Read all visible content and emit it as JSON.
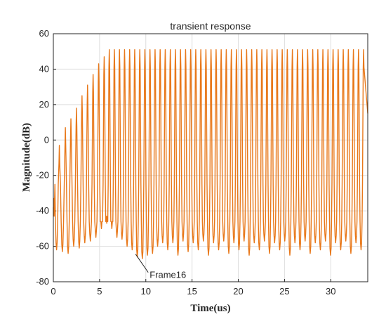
{
  "chart_data": {
    "type": "line",
    "title": "transient response",
    "xlabel": "Time(us)",
    "ylabel": "Magnitude(dB)",
    "xlim": [
      0,
      34
    ],
    "ylim": [
      -80,
      60
    ],
    "x_ticks": [
      0,
      5,
      10,
      15,
      20,
      25,
      30
    ],
    "y_ticks": [
      -80,
      -60,
      -40,
      -20,
      0,
      20,
      40,
      60
    ],
    "x_tick_labels": [
      "0",
      "5",
      "10",
      "15",
      "20",
      "25",
      "30"
    ],
    "y_tick_labels": [
      "-80",
      "-60",
      "-40",
      "-20",
      "0",
      "20",
      "40",
      "60"
    ],
    "grid": true,
    "line_color": "#E8781A",
    "series": [
      {
        "peaks_x": [
          0.05,
          0.65,
          1.3,
          1.9,
          2.5,
          3.1,
          3.7,
          4.3,
          4.9,
          5.5,
          6.05,
          6.6,
          7.15,
          7.7,
          8.25,
          8.8,
          9.35,
          9.9,
          10.45,
          11.0,
          11.55,
          12.1,
          12.65,
          13.2,
          13.75,
          14.3,
          14.85,
          15.4,
          15.95,
          16.5,
          17.05,
          17.6,
          18.15,
          18.7,
          19.25,
          19.8,
          20.35,
          20.9,
          21.45,
          22.0,
          22.55,
          23.1,
          23.65,
          24.2,
          24.75,
          25.3,
          25.85,
          26.4,
          26.95,
          27.5,
          28.05,
          28.6,
          29.15,
          29.7,
          30.25,
          30.8,
          31.35,
          31.9,
          32.45,
          33.0,
          33.55
        ],
        "peaks_y": [
          -33,
          -3,
          7,
          12,
          18,
          25,
          31,
          37,
          43,
          47,
          51,
          51,
          51,
          51,
          51,
          51,
          51,
          51,
          51,
          51,
          51,
          51,
          51,
          51,
          51,
          51,
          51,
          51,
          51,
          51,
          51,
          51,
          51,
          51,
          51,
          51,
          51,
          51,
          51,
          51,
          51,
          51,
          51,
          51,
          51,
          51,
          51,
          51,
          51,
          51,
          51,
          51,
          51,
          51,
          51,
          51,
          51,
          51,
          51,
          51,
          51
        ],
        "troughs_y": [
          -62,
          -63,
          -64,
          -60,
          -61,
          -58,
          -57,
          -55,
          -50,
          -47,
          -50,
          -55,
          -56,
          -60,
          -62,
          -66,
          -67,
          -65,
          -64,
          -60,
          -58,
          -62,
          -58,
          -65,
          -57,
          -63,
          -58,
          -62,
          -57,
          -65,
          -58,
          -62,
          -57,
          -64,
          -58,
          -62,
          -57,
          -65,
          -58,
          -62,
          -57,
          -64,
          -58,
          -62,
          -57,
          -65,
          -58,
          -62,
          -57,
          -64,
          -58,
          -62,
          -57,
          -65,
          -58,
          -62,
          -57,
          -64,
          -58,
          -62
        ]
      }
    ],
    "annotation": {
      "text": "Frame16",
      "x": 9.35,
      "y": -66
    }
  }
}
